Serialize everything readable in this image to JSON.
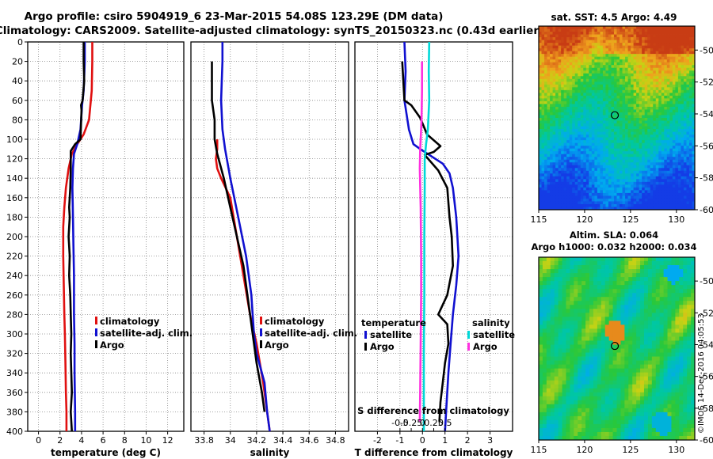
{
  "header": {
    "title_line1": "Argo profile: csiro 5904919_6 23-Mar-2015 54.08S 123.29E (DM data)",
    "title_line2": "Climatology: CARS2009. Satellite-adjusted climatology: synTS_20150323.nc (0.43d earlier)"
  },
  "watermark": "©IMOS 14-Dec-2016 04:05:53",
  "colors": {
    "climatology": "#e01010",
    "satellite": "#1010d0",
    "argo": "#000000",
    "sal_satellite": "#00d8d8",
    "sal_argo": "#ff30e0"
  },
  "chart_data": [
    {
      "id": "temperature",
      "type": "line",
      "xlabel": "temperature (deg C)",
      "ylabel": "",
      "xlim": [
        -1,
        13.5
      ],
      "ylim": [
        400,
        0
      ],
      "xticks": [
        0,
        2,
        4,
        6,
        8,
        10,
        12
      ],
      "yticks": [
        0,
        20,
        40,
        60,
        80,
        100,
        120,
        140,
        160,
        180,
        200,
        220,
        240,
        260,
        280,
        300,
        320,
        340,
        360,
        380,
        400
      ],
      "grid": true,
      "legend": [
        "climatology",
        "satellite-adj. clim.",
        "Argo"
      ],
      "series": [
        {
          "name": "climatology",
          "color": "#e01010",
          "x": [
            5.0,
            5.0,
            4.95,
            4.7,
            4.2,
            3.6,
            3.1,
            2.8,
            2.55,
            2.4,
            2.3,
            2.3,
            2.35,
            2.4,
            2.45,
            2.5,
            2.55,
            2.6,
            2.6
          ],
          "y": [
            0,
            20,
            50,
            80,
            95,
            105,
            115,
            130,
            150,
            170,
            190,
            220,
            250,
            280,
            300,
            330,
            360,
            380,
            400
          ]
        },
        {
          "name": "satellite-adj. clim.",
          "color": "#1010d0",
          "x": [
            4.3,
            4.3,
            4.2,
            4.05,
            3.9,
            3.6,
            3.3,
            3.2,
            3.15,
            3.2,
            3.25,
            3.3,
            3.3,
            3.35,
            3.35,
            3.4,
            3.4
          ],
          "y": [
            0,
            20,
            50,
            65,
            90,
            105,
            115,
            130,
            150,
            180,
            210,
            240,
            280,
            310,
            340,
            380,
            400
          ]
        },
        {
          "name": "Argo",
          "color": "#000000",
          "x": [
            4.2,
            4.2,
            4.25,
            4.1,
            3.95,
            4.0,
            3.9,
            3.4,
            3.0,
            3.0,
            2.95,
            2.85,
            2.9,
            2.8,
            2.9,
            2.85,
            2.95,
            3.0,
            3.05,
            3.0,
            3.05,
            3.1,
            3.0,
            3.05,
            3.1
          ],
          "y": [
            0,
            20,
            40,
            60,
            65,
            70,
            100,
            105,
            112,
            130,
            150,
            170,
            180,
            200,
            220,
            240,
            260,
            280,
            300,
            320,
            340,
            360,
            380,
            390,
            400
          ]
        }
      ]
    },
    {
      "id": "salinity",
      "type": "line",
      "xlabel": "salinity",
      "ylabel": "",
      "xlim": [
        33.7,
        34.9
      ],
      "ylim": [
        400,
        0
      ],
      "xticks": [
        33.8,
        34,
        34.2,
        34.4,
        34.6,
        34.8
      ],
      "xtick_labels": [
        "33.8",
        "34",
        "34.2",
        "34.4",
        "34.6",
        "34.8"
      ],
      "grid": true,
      "legend": [
        "climatology",
        "satellite-adj. clim.",
        "Argo"
      ],
      "series": [
        {
          "name": "climatology",
          "color": "#e01010",
          "x": [
            33.9,
            33.9,
            33.89,
            33.9,
            33.93,
            34.0,
            34.05,
            34.1,
            34.15,
            34.2,
            34.25,
            34.28,
            34.3
          ],
          "y": [
            100,
            110,
            120,
            130,
            140,
            160,
            200,
            240,
            280,
            310,
            350,
            380,
            400
          ]
        },
        {
          "name": "satellite-adj. clim.",
          "color": "#1010d0",
          "x": [
            33.94,
            33.94,
            33.93,
            33.94,
            33.96,
            34.0,
            34.06,
            34.12,
            34.16,
            34.17,
            34.18,
            34.2,
            34.26,
            34.28,
            34.3
          ],
          "y": [
            0,
            20,
            60,
            90,
            110,
            140,
            180,
            220,
            260,
            280,
            300,
            320,
            350,
            380,
            400
          ]
        },
        {
          "name": "Argo",
          "color": "#000000",
          "x": [
            33.86,
            33.86,
            33.88,
            33.88,
            33.9,
            33.95,
            34.0,
            34.05,
            34.1,
            34.13,
            34.16,
            34.18,
            34.2,
            34.24,
            34.26
          ],
          "y": [
            20,
            60,
            80,
            100,
            115,
            140,
            170,
            200,
            230,
            260,
            290,
            310,
            330,
            360,
            380
          ]
        }
      ]
    },
    {
      "id": "difference",
      "type": "line",
      "xlabel": "T difference from climatology",
      "title_bottom": "S difference from climatology",
      "xlim": [
        -3,
        4
      ],
      "ylim": [
        400,
        0
      ],
      "xticks": [
        -2,
        -1,
        0,
        1,
        2,
        3
      ],
      "xtick_labels": [
        "-2",
        "-1",
        "0",
        "1",
        "2",
        "3"
      ],
      "s_ticks": [
        -0.5,
        -0.25,
        0,
        0.25,
        0.5
      ],
      "s_tick_labels": [
        "-0.5",
        "-0.25",
        "0",
        "0.25",
        "0.5"
      ],
      "grid": true,
      "legend_temperature": {
        "heading": "temperature",
        "items": [
          "satellite",
          "Argo"
        ]
      },
      "legend_salinity": {
        "heading": "salinity",
        "items": [
          "satellite",
          "Argo"
        ]
      },
      "series": [
        {
          "name": "T satellite",
          "color": "#1010d0",
          "x": [
            -0.8,
            -0.75,
            -0.8,
            -0.6,
            -0.4,
            -0.1,
            0.3,
            0.9,
            1.2,
            1.35,
            1.5,
            1.6,
            1.5,
            1.35,
            1.25,
            1.15,
            1.05,
            1.0
          ],
          "y": [
            0,
            30,
            60,
            90,
            105,
            110,
            116,
            125,
            135,
            150,
            180,
            220,
            250,
            280,
            310,
            340,
            380,
            400
          ]
        },
        {
          "name": "T Argo",
          "color": "#000000",
          "x": [
            -0.9,
            -0.85,
            -0.8,
            -0.5,
            -0.1,
            0.2,
            0.8,
            0.5,
            0.1,
            0.7,
            1.1,
            1.2,
            1.3,
            1.35,
            1.1,
            0.9,
            0.7,
            1.1,
            1.15,
            1.0,
            0.9,
            0.8,
            0.75
          ],
          "y": [
            20,
            40,
            60,
            65,
            78,
            95,
            107,
            113,
            116,
            132,
            150,
            180,
            200,
            230,
            260,
            270,
            280,
            290,
            310,
            330,
            350,
            370,
            390
          ]
        },
        {
          "name": "S satellite",
          "color": "#00d8d8",
          "x": [
            0.15,
            0.14,
            0.15,
            0.12,
            0.08,
            0.05,
            0.05,
            0.04,
            0.04,
            0.03,
            0.03,
            0.03
          ],
          "y": [
            0,
            30,
            60,
            90,
            105,
            120,
            150,
            200,
            260,
            320,
            360,
            400
          ]
        },
        {
          "name": "S Argo",
          "color": "#ff30e0",
          "x": [
            -0.01,
            -0.01,
            -0.02,
            -0.04,
            -0.05,
            -0.06,
            -0.04,
            -0.03,
            -0.03,
            -0.04,
            -0.05,
            -0.06
          ],
          "y": [
            20,
            50,
            80,
            100,
            110,
            130,
            170,
            220,
            260,
            310,
            360,
            390
          ]
        }
      ]
    },
    {
      "id": "sst_map",
      "type": "heatmap",
      "title": "sat. SST: 4.5 Argo: 4.49",
      "xlim": [
        115,
        132
      ],
      "ylim": [
        -60,
        -48.5
      ],
      "xticks": [
        115,
        120,
        125,
        130
      ],
      "yticks": [
        -50,
        -52,
        -54,
        -56,
        -58,
        -60
      ],
      "marker": {
        "lon": 123.29,
        "lat": -54.08
      }
    },
    {
      "id": "sla_map",
      "type": "heatmap",
      "title_line1": "Altim. SLA: 0.064",
      "title_line2": "Argo h1000: 0.032 h2000: 0.034",
      "xlim": [
        115,
        132
      ],
      "ylim": [
        -60,
        -48.5
      ],
      "xticks": [
        115,
        120,
        125,
        130
      ],
      "yticks": [
        -50,
        -52,
        -54,
        -56,
        -58,
        -60
      ],
      "marker": {
        "lon": 123.29,
        "lat": -54.08
      }
    }
  ]
}
